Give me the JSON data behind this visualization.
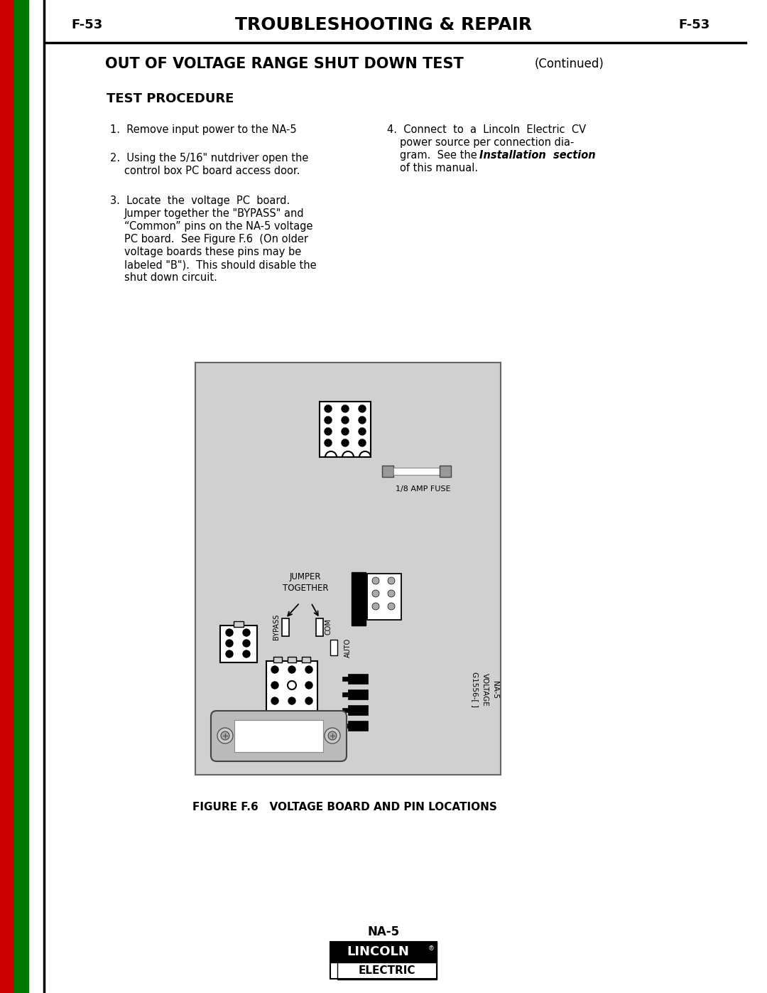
{
  "page_label": "F-53",
  "page_title": "TROUBLESHOOTING & REPAIR",
  "section_title": "OUT OF VOLTAGE RANGE SHUT DOWN TEST",
  "section_title_continued": "(Continued)",
  "subsection_title": "TEST PROCEDURE",
  "step1": "Remove input power to the NA-5",
  "step2_line1": "Using the 5/16\" nutdriver open the",
  "step2_line2": "control box PC board access door.",
  "step3_line1": "Locate  the  voltage  PC  board.",
  "step3_line2": "Jumper together the \"BYPASS\" and",
  "step3_line3": "“Common” pins on the NA-5 voltage",
  "step3_line4": "PC board.  See Figure F.6  (On older",
  "step3_line5": "voltage boards these pins may be",
  "step3_line6": "labeled \"B\").  This should disable the",
  "step3_line7": "shut down circuit.",
  "step4_line1": "4.  Connect  to  a  Lincoln  Electric  CV",
  "step4_line2": "power source per connection dia-",
  "step4_line3": "gram.  See the ",
  "step4_bold": "Installation  section",
  "step4_line4": "of this manual.",
  "figure_caption": "FIGURE F.6   VOLTAGE BOARD AND PIN LOCATIONS",
  "footer_label": "NA-5",
  "bg_color": "#ffffff",
  "sidebar_red_color": "#cc0000",
  "sidebar_green_color": "#007700",
  "board_bg": "#d0d0d0",
  "board_border": "#555555"
}
